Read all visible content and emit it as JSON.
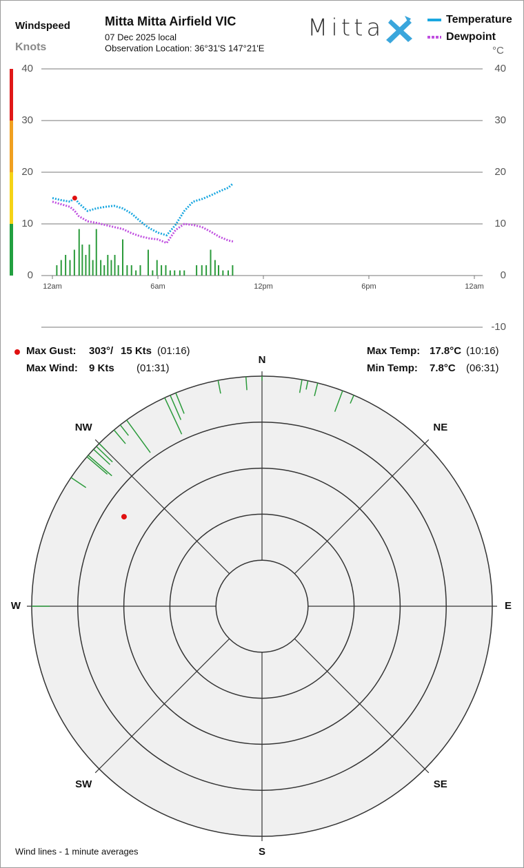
{
  "header": {
    "y_label_1": "Windspeed",
    "y_label_2": "Knots",
    "title": "Mitta Mitta Airfield VIC",
    "date": "07 Dec 2025 local",
    "location": "Observation Location: 36°31'S 147°21'E",
    "logo": "Mitta",
    "y2_unit": "°C"
  },
  "chart_data": [
    {
      "type": "line",
      "xlim": [
        0,
        24
      ],
      "xticks": [
        {
          "value": 0,
          "label": "12am"
        },
        {
          "value": 6,
          "label": "6am"
        },
        {
          "value": 12,
          "label": "12pm"
        },
        {
          "value": 18,
          "label": "6pm"
        },
        {
          "value": 24,
          "label": "12am"
        }
      ],
      "ylim": [
        0,
        40
      ],
      "yticks": [
        0,
        10,
        20,
        30,
        40
      ],
      "y2lim": [
        -10,
        40
      ],
      "y2ticks": [
        -10,
        0,
        10,
        20,
        30,
        40
      ],
      "grid": true,
      "wind_scale_colors": [
        {
          "from": 0,
          "to": 10,
          "color": "#22a040"
        },
        {
          "from": 10,
          "to": 20,
          "color": "#f5d316"
        },
        {
          "from": 20,
          "to": 30,
          "color": "#f0a020"
        },
        {
          "from": 30,
          "to": 40,
          "color": "#e01818"
        }
      ],
      "x": [
        0,
        0.5,
        1,
        1.27,
        1.5,
        2,
        2.5,
        3,
        3.5,
        4,
        4.5,
        5,
        5.5,
        6,
        6.5,
        7,
        7.5,
        8,
        8.5,
        9,
        9.5,
        10,
        10.27
      ],
      "series": [
        {
          "name": "Temperature",
          "color": "#1aa7e0",
          "axis": "y2",
          "values": [
            15,
            14.6,
            14.3,
            15,
            14,
            12.5,
            13,
            13.3,
            13.5,
            13,
            12,
            10.5,
            9.2,
            8.3,
            7.8,
            9.8,
            12.5,
            14.3,
            14.8,
            15.5,
            16.3,
            17,
            17.8
          ]
        },
        {
          "name": "Dewpoint",
          "color": "#c050e0",
          "axis": "y2",
          "values": [
            14.3,
            13.8,
            13.3,
            12.5,
            11.5,
            10.5,
            10.2,
            9.8,
            9.4,
            9,
            8.2,
            7.6,
            7.2,
            7,
            6.3,
            8.8,
            10,
            9.8,
            9.4,
            8.5,
            7.5,
            6.8,
            6.6
          ]
        }
      ],
      "wind": {
        "color": "#2a9a3a",
        "x": [
          0.25,
          0.5,
          0.75,
          1.0,
          1.25,
          1.52,
          1.7,
          1.9,
          2.1,
          2.3,
          2.5,
          2.75,
          2.95,
          3.15,
          3.35,
          3.55,
          3.75,
          4.0,
          4.25,
          4.5,
          4.75,
          5.0,
          5.45,
          5.7,
          5.95,
          6.2,
          6.45,
          6.7,
          6.95,
          7.25,
          7.5,
          8.2,
          8.5,
          8.75,
          9.0,
          9.25,
          9.45,
          9.7,
          10.0,
          10.25
        ],
        "values": [
          2,
          3,
          4,
          3,
          5,
          9,
          6,
          4,
          6,
          3,
          9,
          3,
          2,
          4,
          3,
          4,
          2,
          7,
          2,
          2,
          1,
          2,
          5,
          1,
          3,
          2,
          2,
          1,
          1,
          1,
          1,
          2,
          2,
          2,
          5,
          3,
          2,
          1,
          1,
          2
        ]
      },
      "gust": {
        "x": 1.27,
        "value": 15,
        "color": "#e01010"
      }
    },
    {
      "type": "wind-rose",
      "rlim": [
        0,
        21
      ],
      "compass": [
        {
          "value": 0,
          "label": "N"
        },
        {
          "value": 45,
          "label": "NE"
        },
        {
          "value": 90,
          "label": "E"
        },
        {
          "value": 135,
          "label": "SE"
        },
        {
          "value": 180,
          "label": "S"
        },
        {
          "value": 225,
          "label": "SW"
        },
        {
          "value": 270,
          "label": "W"
        },
        {
          "value": 315,
          "label": "NW"
        }
      ],
      "wind_lines": {
        "color": "#2a9a3a",
        "directions": [
          349,
          356,
          0,
          10,
          11.5,
          14,
          20.5,
          23.5,
          335,
          336.5,
          338,
          324,
          320,
          322,
          315,
          311,
          313,
          314,
          310.5,
          304,
          270
        ],
        "speeds": [
          3,
          3,
          1,
          3,
          2,
          3,
          5,
          2,
          9,
          6,
          5,
          9,
          4,
          3,
          2,
          7,
          5,
          5,
          6,
          4,
          4
        ]
      },
      "gust": {
        "direction": 303,
        "speed": 15,
        "color": "#e01010"
      },
      "footnote": "Wind lines - 1 minute averages"
    }
  ],
  "summary": {
    "max_gust": {
      "label": "Max Gust:",
      "direction_label": "303°/",
      "speed_label": "15 Kts",
      "time": "(01:16)"
    },
    "max_wind": {
      "label": "Max Wind:",
      "speed_label": "9 Kts",
      "time": "(01:31)"
    },
    "max_temp": {
      "label": "Max Temp:",
      "value_label": "17.8°C",
      "time": "(10:16)"
    },
    "min_temp": {
      "label": "Min Temp:",
      "value_label": "7.8°C",
      "time": "(06:31)"
    }
  }
}
